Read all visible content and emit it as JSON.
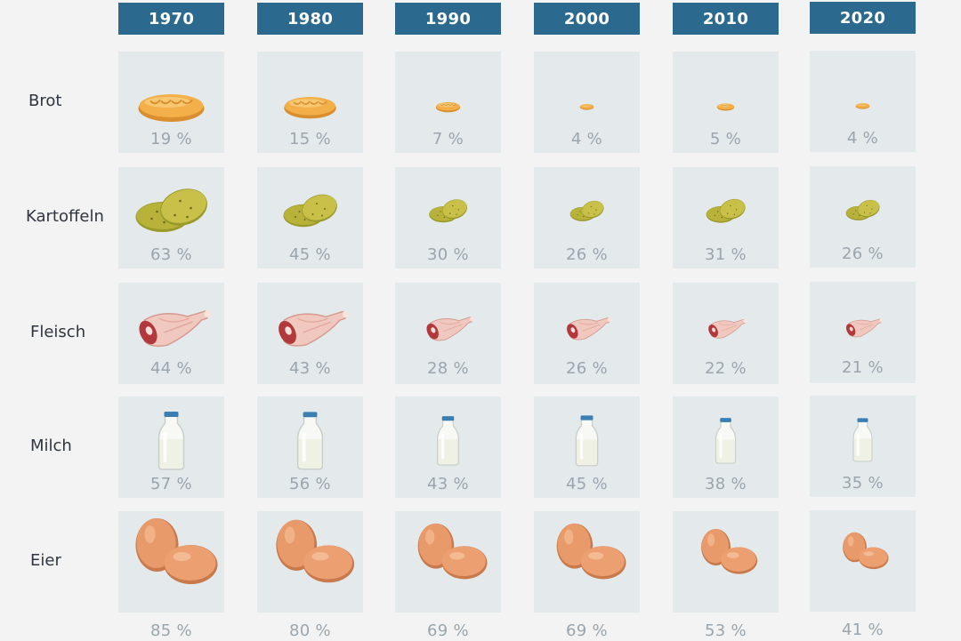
{
  "chart_data": {
    "type": "table",
    "columns": [
      "1970",
      "1980",
      "1990",
      "2000",
      "2010",
      "2020"
    ],
    "rows": [
      {
        "label": "Brot",
        "icon": "bread-icon",
        "values": [
          19,
          15,
          7,
          4,
          5,
          4
        ],
        "value_labels": [
          "19 %",
          "15 %",
          "7 %",
          "4 %",
          "5 %",
          "4 %"
        ]
      },
      {
        "label": "Kartoffeln",
        "icon": "potato-icon",
        "values": [
          63,
          45,
          30,
          26,
          31,
          26
        ],
        "value_labels": [
          "63 %",
          "45 %",
          "30 %",
          "26 %",
          "31 %",
          "26 %"
        ]
      },
      {
        "label": "Fleisch",
        "icon": "meat-icon",
        "values": [
          44,
          43,
          28,
          26,
          22,
          21
        ],
        "value_labels": [
          "44 %",
          "43 %",
          "28 %",
          "26 %",
          "22 %",
          "21 %"
        ]
      },
      {
        "label": "Milch",
        "icon": "milk-bottle-icon",
        "values": [
          57,
          56,
          43,
          45,
          38,
          35
        ],
        "value_labels": [
          "57 %",
          "56 %",
          "43 %",
          "45 %",
          "38 %",
          "35 %"
        ]
      },
      {
        "label": "Eier",
        "icon": "egg-icon",
        "values": [
          85,
          80,
          69,
          69,
          53,
          41
        ],
        "value_labels": [
          "85 %",
          "80 %",
          "69 %",
          "69 %",
          "53 %",
          "41 %"
        ]
      }
    ]
  },
  "colors": {
    "header": "#2b6a8e",
    "cell": "#e4e9ec",
    "background": "#f2f3f2",
    "value_text": "#9aa5ad",
    "label_text": "#2f3540"
  }
}
